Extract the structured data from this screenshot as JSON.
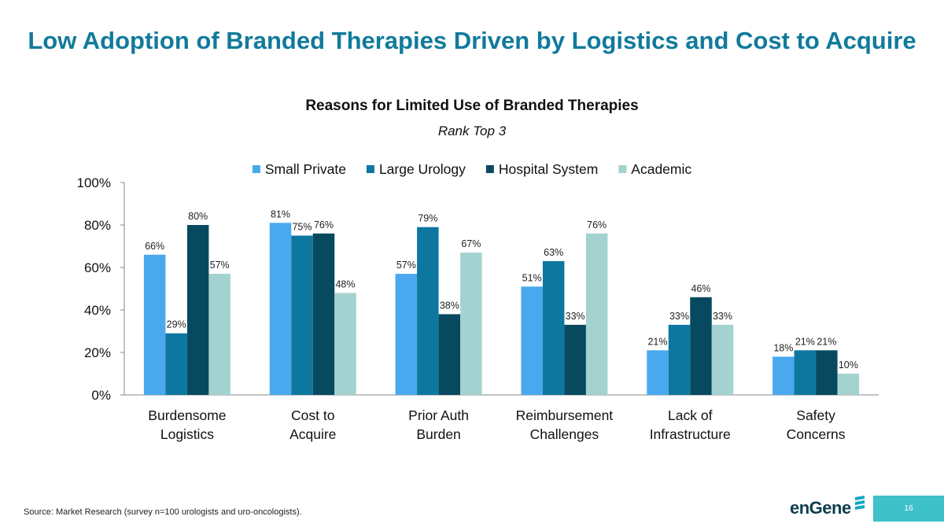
{
  "page": {
    "title": "Low Adoption of Branded Therapies Driven by Logistics and Cost to Acquire",
    "source": "Source: Market Research (survey n=100 urologists and uro-oncologists).",
    "page_number": "16",
    "logo_text": "enGene"
  },
  "colors": {
    "title": "#117a9c",
    "page_number_box": "#3fc1c9",
    "logo": "#0d3d4e"
  },
  "chart_data": {
    "type": "bar",
    "title": "Reasons for Limited Use of Branded Therapies",
    "subtitle": "Rank Top 3",
    "xlabel": "",
    "ylabel": "",
    "categories": [
      [
        "Burdensome",
        "Logistics"
      ],
      [
        "Cost to",
        "Acquire"
      ],
      [
        "Prior Auth",
        "Burden"
      ],
      [
        "Reimbursement",
        "Challenges"
      ],
      [
        "Lack of",
        "Infrastructure"
      ],
      [
        "Safety",
        "Concerns"
      ]
    ],
    "series": [
      {
        "name": "Small Private",
        "color": "#4aa8ee",
        "values": [
          66,
          81,
          57,
          51,
          21,
          18
        ]
      },
      {
        "name": "Large Urology",
        "color": "#0d77a0",
        "values": [
          29,
          75,
          79,
          63,
          33,
          21
        ]
      },
      {
        "name": "Hospital System",
        "color": "#074a60",
        "values": [
          80,
          76,
          38,
          33,
          46,
          21
        ]
      },
      {
        "name": "Academic",
        "color": "#a4d2d0",
        "values": [
          57,
          48,
          67,
          76,
          33,
          10
        ]
      }
    ],
    "ylim": [
      0,
      100
    ],
    "yticks": [
      0,
      20,
      40,
      60,
      80,
      100
    ],
    "tick_suffix": "%",
    "value_suffix": "%",
    "legend_position": "top",
    "grid": false
  }
}
